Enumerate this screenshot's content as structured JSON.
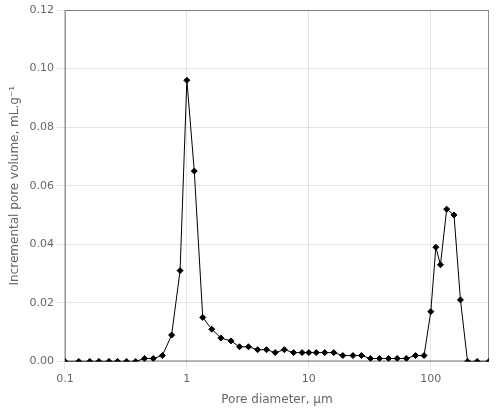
{
  "chart_data": {
    "type": "line",
    "xlabel": "Pore diameter, μm",
    "ylabel": "Incremental pore volume, mL.g⁻¹",
    "x": [
      0.1,
      0.13,
      0.16,
      0.19,
      0.23,
      0.27,
      0.32,
      0.38,
      0.45,
      0.53,
      0.63,
      0.75,
      0.88,
      1.0,
      1.15,
      1.35,
      1.6,
      1.9,
      2.3,
      2.7,
      3.2,
      3.8,
      4.5,
      5.3,
      6.3,
      7.5,
      8.8,
      10.0,
      11.5,
      13.5,
      16.0,
      19.0,
      23.0,
      27.0,
      32.0,
      38.0,
      45.0,
      53.0,
      63.0,
      75.0,
      88.0,
      100.0,
      110.0,
      120.0,
      135.0,
      155.0,
      175.0,
      200.0,
      240.0,
      300.0
    ],
    "values": [
      0.0,
      0.0,
      0.0,
      0.0,
      0.0,
      0.0,
      0.0,
      0.0,
      0.001,
      0.001,
      0.002,
      0.009,
      0.031,
      0.096,
      0.065,
      0.015,
      0.011,
      0.008,
      0.007,
      0.005,
      0.005,
      0.004,
      0.004,
      0.003,
      0.004,
      0.003,
      0.003,
      0.003,
      0.003,
      0.003,
      0.003,
      0.002,
      0.002,
      0.002,
      0.001,
      0.001,
      0.001,
      0.001,
      0.001,
      0.002,
      0.002,
      0.017,
      0.039,
      0.033,
      0.052,
      0.05,
      0.021,
      0.0,
      0.0,
      0.0
    ],
    "color": "#000000",
    "marker": "diamond",
    "log": "x",
    "xlim": [
      0.1,
      300
    ],
    "xticks": [
      0.1,
      1,
      10,
      100
    ],
    "ylim": [
      0.0,
      0.12
    ],
    "yticks": [
      {
        "value": 0.0,
        "label": "0.00"
      },
      0.02,
      0.04,
      0.06,
      0.08,
      {
        "value": 0.1,
        "label": "0.10"
      },
      0.12
    ],
    "grid": true
  }
}
